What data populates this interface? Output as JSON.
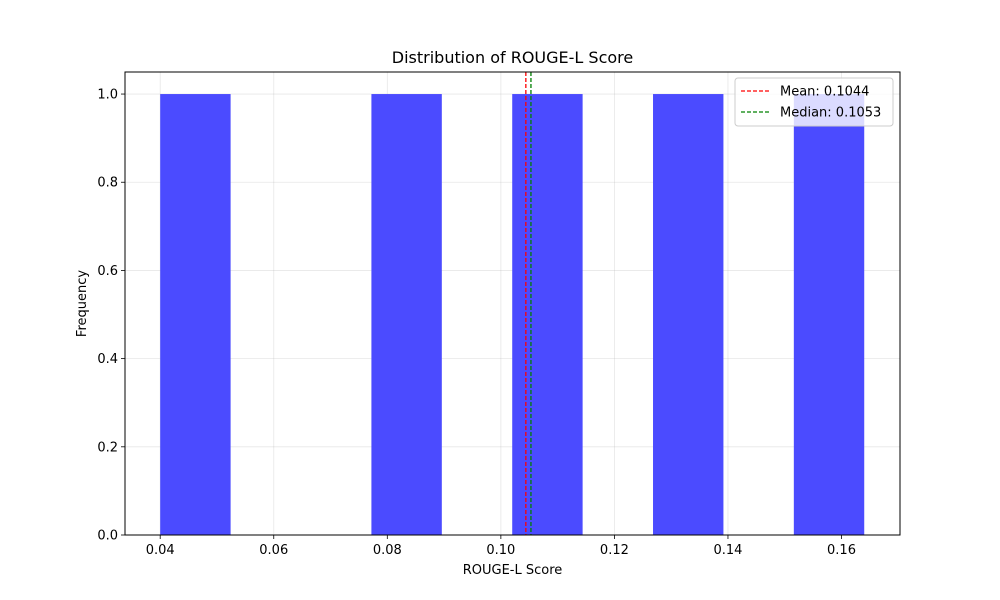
{
  "chart_data": {
    "type": "bar",
    "title": "Distribution of ROUGE-L Score",
    "xlabel": "ROUGE-L Score",
    "ylabel": "Frequency",
    "xlim": [
      0.0338,
      0.1703
    ],
    "ylim": [
      0,
      1.05
    ],
    "x_ticks": [
      "0.04",
      "0.06",
      "0.08",
      "0.10",
      "0.12",
      "0.14",
      "0.16"
    ],
    "y_ticks": [
      "0.0",
      "0.2",
      "0.4",
      "0.6",
      "0.8",
      "1.0"
    ],
    "bins": [
      {
        "start": 0.04,
        "end": 0.0524,
        "count": 1
      },
      {
        "start": 0.0524,
        "end": 0.0648,
        "count": 0
      },
      {
        "start": 0.0648,
        "end": 0.0772,
        "count": 0
      },
      {
        "start": 0.0772,
        "end": 0.0896,
        "count": 1
      },
      {
        "start": 0.0896,
        "end": 0.102,
        "count": 0
      },
      {
        "start": 0.102,
        "end": 0.1144,
        "count": 1
      },
      {
        "start": 0.1144,
        "end": 0.1268,
        "count": 0
      },
      {
        "start": 0.1268,
        "end": 0.1392,
        "count": 1
      },
      {
        "start": 0.1392,
        "end": 0.1516,
        "count": 0
      },
      {
        "start": 0.1516,
        "end": 0.164,
        "count": 1
      }
    ],
    "bar_color": "#4b4bff",
    "grid": true,
    "mean": {
      "value": 0.1044,
      "label": "Mean: 0.1044",
      "color": "#ff0000"
    },
    "median": {
      "value": 0.1053,
      "label": "Median: 0.1053",
      "color": "#008000"
    },
    "legend_position": "top-right"
  }
}
